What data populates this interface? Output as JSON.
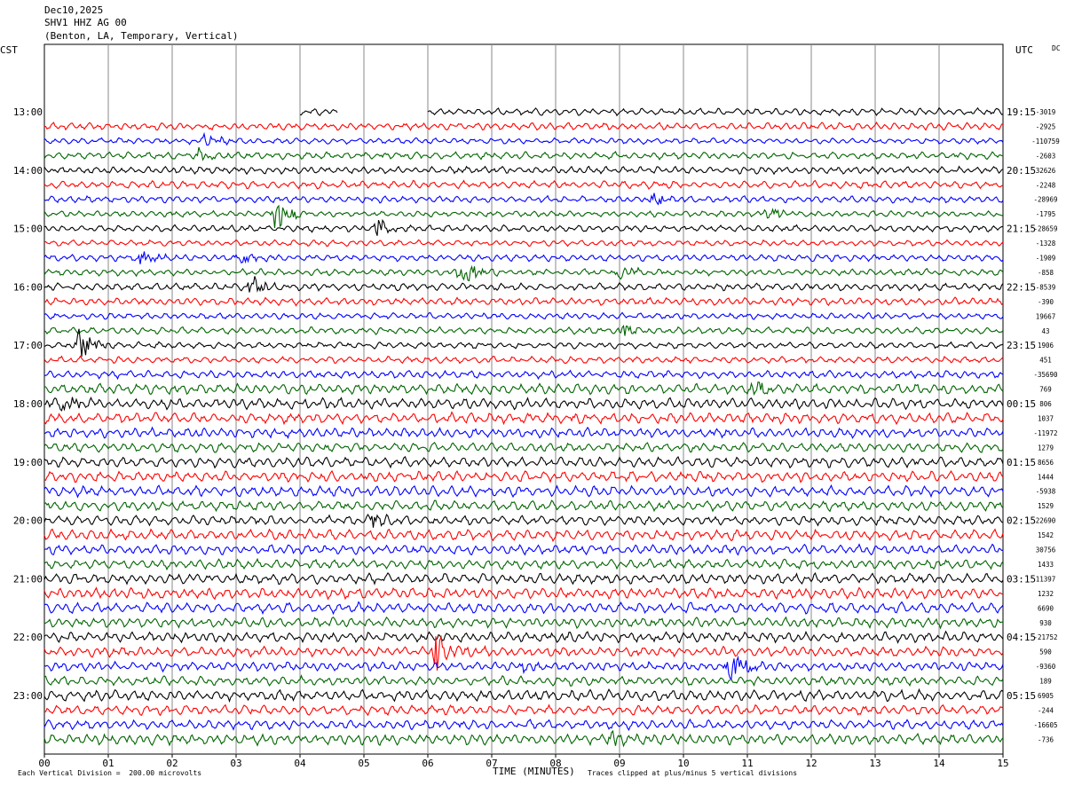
{
  "header": {
    "date": "Dec10,2025",
    "station": "SHV1 HHZ AG 00",
    "location": "(Benton, LA, Temporary, Vertical)"
  },
  "left_axis_label": "CST",
  "right_axis_label": "UTC",
  "dc_label": "DC",
  "footer": {
    "scale_note": "Each Vertical Division =  200.00 microvolts",
    "xlabel": "TIME (MINUTES)",
    "clip_note": "Traces clipped at plus/minus 5 vertical divisions"
  },
  "chart_data": {
    "type": "line",
    "title": "SHV1 HHZ AG 00",
    "xlabel": "TIME (MINUTES)",
    "xlim": [
      0,
      15
    ],
    "x_ticks": [
      "00",
      "01",
      "02",
      "03",
      "04",
      "05",
      "06",
      "07",
      "08",
      "09",
      "10",
      "11",
      "12",
      "13",
      "14",
      "15"
    ],
    "left_time_labels": [
      "13:00",
      "14:00",
      "15:00",
      "16:00",
      "17:00",
      "18:00",
      "19:00",
      "20:00",
      "21:00",
      "22:00",
      "23:00"
    ],
    "right_time_labels": [
      "19:15",
      "20:15",
      "21:15",
      "22:15",
      "23:15",
      "00:15",
      "01:15",
      "02:15",
      "03:15",
      "04:15",
      "05:15"
    ],
    "trace_colors": [
      "#000000",
      "#ff0000",
      "#0000ff",
      "#006400"
    ],
    "grid": true,
    "dc_offsets": [
      "-3019",
      "-2925",
      "-110759",
      "-2603",
      "32626",
      "-2248",
      "-28969",
      "-1795",
      "-28659",
      "-1328",
      "-1909",
      "-858",
      "-8539",
      "-390",
      "19667",
      "43",
      "1906",
      "451",
      "-35690",
      "769",
      "806",
      "1037",
      "-11972",
      "1279",
      "8656",
      "1444",
      "-5938",
      "1529",
      "22690",
      "1542",
      "30756",
      "1433",
      "11397",
      "1232",
      "6690",
      "930",
      "-21752",
      "590",
      "-9360",
      "189",
      "6905",
      "-244",
      "-16605",
      "-736"
    ],
    "events": [
      {
        "trace": 2,
        "minute": 2.5,
        "amplitude": 2.0
      },
      {
        "trace": 3,
        "minute": 2.4,
        "amplitude": 1.5
      },
      {
        "trace": 6,
        "minute": 9.5,
        "amplitude": 1.8
      },
      {
        "trace": 7,
        "minute": 3.6,
        "amplitude": 4.0
      },
      {
        "trace": 7,
        "minute": 11.3,
        "amplitude": 2.0
      },
      {
        "trace": 8,
        "minute": 5.2,
        "amplitude": 2.5
      },
      {
        "trace": 10,
        "minute": 1.5,
        "amplitude": 2.0
      },
      {
        "trace": 10,
        "minute": 3.0,
        "amplitude": 2.2
      },
      {
        "trace": 11,
        "minute": 6.5,
        "amplitude": 3.5
      },
      {
        "trace": 11,
        "minute": 9.0,
        "amplitude": 3.0
      },
      {
        "trace": 12,
        "minute": 3.2,
        "amplitude": 3.0
      },
      {
        "trace": 15,
        "minute": 9.0,
        "amplitude": 2.0
      },
      {
        "trace": 16,
        "minute": 0.5,
        "amplitude": 4.5
      },
      {
        "trace": 19,
        "minute": 11.1,
        "amplitude": 2.5
      },
      {
        "trace": 20,
        "minute": 0.3,
        "amplitude": 3.0
      },
      {
        "trace": 28,
        "minute": 5.1,
        "amplitude": 2.5
      },
      {
        "trace": 37,
        "minute": 6.1,
        "amplitude": 5.0
      },
      {
        "trace": 38,
        "minute": 10.7,
        "amplitude": 4.5
      },
      {
        "trace": 38,
        "minute": 7.5,
        "amplitude": 1.2
      },
      {
        "trace": 43,
        "minute": 8.8,
        "amplitude": 2.0
      }
    ]
  }
}
